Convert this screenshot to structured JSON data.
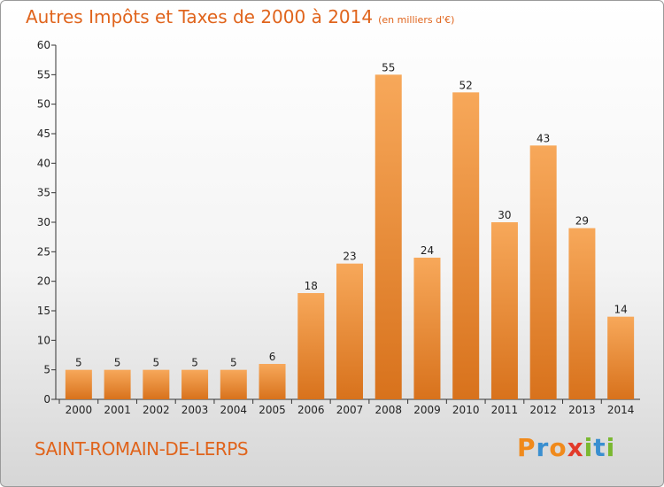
{
  "title": "Autres Impôts et Taxes de 2000 à 2014",
  "subtitle": "(en milliers d'€)",
  "commune": "SAINT-ROMAIN-DE-LERPS",
  "logo": {
    "letters": [
      "P",
      "r",
      "o",
      "x",
      "i",
      "t",
      "i"
    ],
    "colors": [
      "#f08a1c",
      "#3a8fd0",
      "#f08a1c",
      "#e23a2a",
      "#7ab830",
      "#3a8fd0",
      "#7ab830"
    ]
  },
  "colors": {
    "bar_top": "#f7a85a",
    "bar_bottom": "#d8721c",
    "title": "#e0641c"
  },
  "chart_data": {
    "type": "bar",
    "categories": [
      "2000",
      "2001",
      "2002",
      "2003",
      "2004",
      "2005",
      "2006",
      "2007",
      "2008",
      "2009",
      "2010",
      "2011",
      "2012",
      "2013",
      "2014"
    ],
    "values": [
      5,
      5,
      5,
      5,
      5,
      6,
      18,
      23,
      55,
      24,
      52,
      30,
      43,
      29,
      14
    ],
    "ylim": [
      0,
      60
    ],
    "yticks": [
      0,
      5,
      10,
      15,
      20,
      25,
      30,
      35,
      40,
      45,
      50,
      55,
      60
    ],
    "grid": false,
    "data_labels": true
  }
}
